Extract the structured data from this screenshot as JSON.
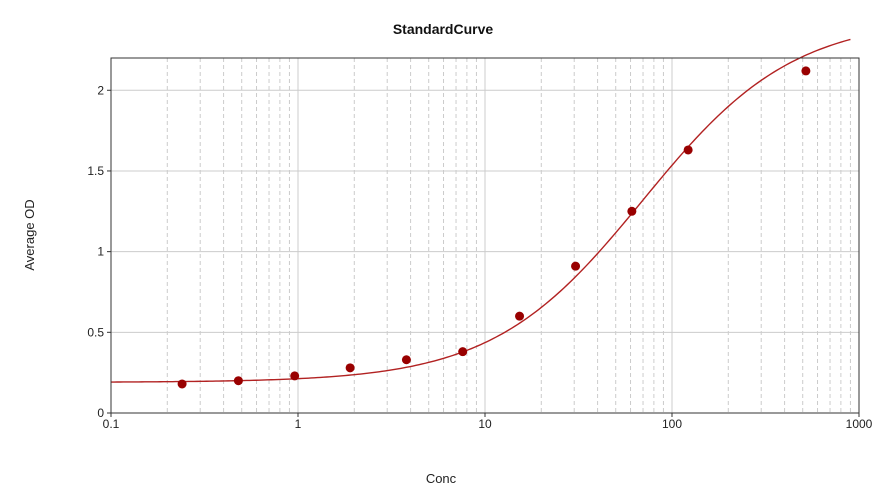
{
  "chart_data": {
    "type": "scatter",
    "title": "StandardCurve",
    "xlabel": "Conc",
    "ylabel": "Average OD",
    "x_scale": "log",
    "xlim": [
      0.1,
      1000
    ],
    "ylim": [
      0,
      2.2
    ],
    "x_ticks": [
      "0.1",
      "1",
      "10",
      "100",
      "1000"
    ],
    "y_ticks": [
      "0",
      "0.5",
      "1",
      "1.5",
      "2"
    ],
    "grid": true,
    "legend": "none",
    "colors": {
      "points": "#990000",
      "curve": "#b22222",
      "grid": "#cccccc",
      "axis": "#333333"
    },
    "series": [
      {
        "type": "scatter",
        "x": [
          0.24,
          0.48,
          0.96,
          1.9,
          3.8,
          7.6,
          15.3,
          30.5,
          61,
          122,
          520
        ],
        "y": [
          0.18,
          0.2,
          0.23,
          0.28,
          0.33,
          0.38,
          0.6,
          0.91,
          1.25,
          1.63,
          2.12
        ]
      },
      {
        "type": "line",
        "fit": "4PL",
        "params": {
          "A": 0.19,
          "D": 2.45,
          "C": 70,
          "B": 1.08
        },
        "x_range": [
          0.1,
          900
        ]
      }
    ]
  }
}
